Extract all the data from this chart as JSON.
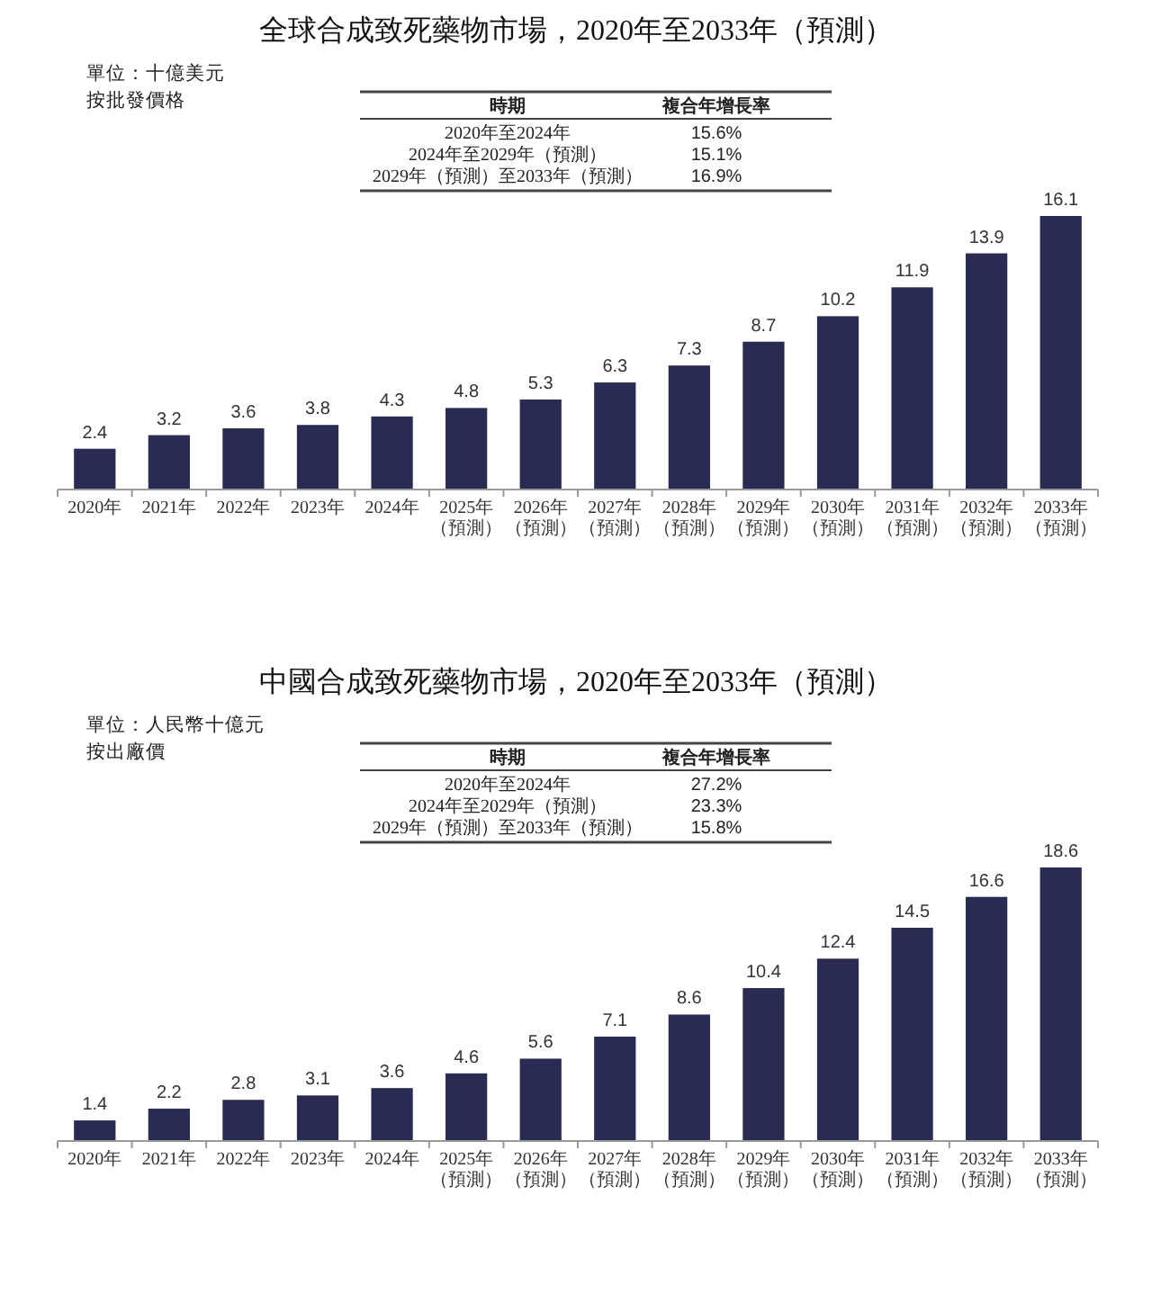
{
  "chart_data": [
    {
      "type": "bar",
      "title": "全球合成致死藥物市場，2020年至2033年（預測）",
      "annotations": [
        "單位：十億美元",
        "按批發價格",
        "時期",
        "複合年增長率",
        "2020年至2024年",
        "15.6%",
        "2024年至2029年（預測）",
        "15.1%",
        "2029年（預測）至2033年（預測）",
        "16.9%"
      ],
      "categories": [
        "2020年",
        "2021年",
        "2022年",
        "2023年",
        "2024年",
        "2025年（預測）",
        "2026年（預測）",
        "2027年（預測）",
        "2028年（預測）",
        "2029年（預測）",
        "2030年（預測）",
        "2031年（預測）",
        "2032年（預測）",
        "2033年（預測）"
      ],
      "values": [
        2.4,
        3.2,
        3.6,
        3.8,
        4.3,
        4.8,
        5.3,
        6.3,
        7.3,
        8.7,
        10.2,
        11.9,
        13.9,
        16.1
      ],
      "color": "#2a2b52",
      "data_labels": true,
      "tick_labels": "x"
    },
    {
      "type": "bar",
      "title": "中國合成致死藥物市場，2020年至2033年（預測）",
      "annotations": [
        "單位：人民幣十億元",
        "按出廠價",
        "時期",
        "複合年增長率",
        "2020年至2024年",
        "27.2%",
        "2024年至2029年（預測）",
        "23.3%",
        "2029年（預測）至2033年（預測）",
        "15.8%"
      ],
      "categories": [
        "2020年",
        "2021年",
        "2022年",
        "2023年",
        "2024年",
        "2025年（預測）",
        "2026年（預測）",
        "2027年（預測）",
        "2028年（預測）",
        "2029年（預測）",
        "2030年（預測）",
        "2031年（預測）",
        "2032年（預測）",
        "2033年（預測）"
      ],
      "values": [
        1.4,
        2.2,
        2.8,
        3.1,
        3.6,
        4.6,
        5.6,
        7.1,
        8.6,
        10.4,
        12.4,
        14.5,
        16.6,
        18.6
      ],
      "color": "#2a2b52",
      "data_labels": true,
      "tick_labels": "x"
    }
  ]
}
